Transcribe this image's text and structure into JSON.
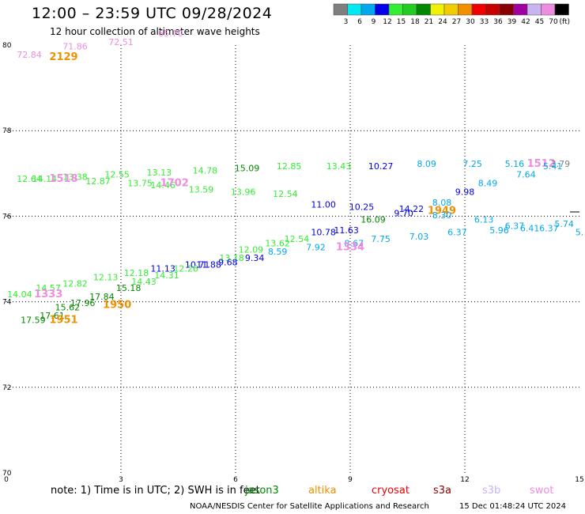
{
  "header": {
    "title": "12:00 – 23:59 UTC 09/28/2024",
    "subtitle": "12 hour collection of altimeter wave heights"
  },
  "colorbar": {
    "unit": "(ft)",
    "bins": [
      {
        "label": "3",
        "color": "#7f7f7f"
      },
      {
        "label": "6",
        "color": "#00e8f0"
      },
      {
        "label": "9",
        "color": "#00a8f0"
      },
      {
        "label": "12",
        "color": "#0000e8"
      },
      {
        "label": "15",
        "color": "#33ee33"
      },
      {
        "label": "18",
        "color": "#22cc22"
      },
      {
        "label": "21",
        "color": "#008800"
      },
      {
        "label": "24",
        "color": "#f0f000"
      },
      {
        "label": "27",
        "color": "#f0cc00"
      },
      {
        "label": "30",
        "color": "#f09000"
      },
      {
        "label": "33",
        "color": "#f00000"
      },
      {
        "label": "36",
        "color": "#c80000"
      },
      {
        "label": "39",
        "color": "#880000"
      },
      {
        "label": "42",
        "color": "#a000a0"
      },
      {
        "label": "45",
        "color": "#c8b4f0"
      },
      {
        "label": "70",
        "color": "#f08ce0"
      },
      {
        "label": "",
        "color": "#000000"
      }
    ]
  },
  "footer": {
    "note": "note:  1) Time is in UTC;  2) SWH is in feet",
    "credit": "NOAA/NESDIS Center for Satellite Applications and Research",
    "timestamp": "15 Dec 01:48:24 UTC 2024",
    "satellites": [
      {
        "name": "jason3",
        "color": "#008800"
      },
      {
        "name": "altika",
        "color": "#f09000"
      },
      {
        "name": "cryosat",
        "color": "#f00000"
      },
      {
        "name": "s3a",
        "color": "#880000"
      },
      {
        "name": "s3b",
        "color": "#c8b4f0"
      },
      {
        "name": "swot",
        "color": "#f08ce0"
      }
    ]
  },
  "chart_data": {
    "type": "scatter",
    "x_ticks": [
      "0",
      "3",
      "6",
      "9",
      "12",
      "15"
    ],
    "y_ticks": [
      "70",
      "72",
      "74",
      "76",
      "78",
      "80"
    ],
    "xlim": [
      0,
      15
    ],
    "ylim": [
      70,
      80
    ],
    "grid": true,
    "points": [
      {
        "x": 0.6,
        "y": 79.7,
        "label": "72.84",
        "color": "#f08ce0"
      },
      {
        "x": 1.8,
        "y": 79.9,
        "label": "71.86",
        "color": "#f08ce0"
      },
      {
        "x": 3.0,
        "y": 80.0,
        "label": "72.51",
        "color": "#f08ce0"
      },
      {
        "x": 4.3,
        "y": 80.2,
        "label": "65.70",
        "color": "#f08ce0"
      },
      {
        "x": 1.5,
        "y": 79.65,
        "label": "2129",
        "color": "#f09000"
      },
      {
        "x": 0.6,
        "y": 76.8,
        "label": "12.64",
        "color": "#33ee33"
      },
      {
        "x": 1.0,
        "y": 76.8,
        "label": "14.14",
        "color": "#33ee33"
      },
      {
        "x": 1.8,
        "y": 76.85,
        "label": "13.38",
        "color": "#33ee33"
      },
      {
        "x": 1.5,
        "y": 76.8,
        "label": "1518",
        "color": "#f08ce0"
      },
      {
        "x": 2.4,
        "y": 76.75,
        "label": "12.87",
        "color": "#33ee33"
      },
      {
        "x": 2.9,
        "y": 76.9,
        "label": "12.55",
        "color": "#33ee33"
      },
      {
        "x": 4.0,
        "y": 76.95,
        "label": "13.13",
        "color": "#33ee33"
      },
      {
        "x": 3.5,
        "y": 76.7,
        "label": "13.75",
        "color": "#33ee33"
      },
      {
        "x": 4.1,
        "y": 76.65,
        "label": "14.46",
        "color": "#33ee33"
      },
      {
        "x": 4.4,
        "y": 76.7,
        "label": "1702",
        "color": "#f08ce0"
      },
      {
        "x": 5.2,
        "y": 77.0,
        "label": "14.78",
        "color": "#33ee33"
      },
      {
        "x": 5.1,
        "y": 76.55,
        "label": "13.59",
        "color": "#33ee33"
      },
      {
        "x": 6.3,
        "y": 77.05,
        "label": "15.09",
        "color": "#008800"
      },
      {
        "x": 6.2,
        "y": 76.5,
        "label": "13.96",
        "color": "#33ee33"
      },
      {
        "x": 7.4,
        "y": 77.1,
        "label": "12.85",
        "color": "#33ee33"
      },
      {
        "x": 7.3,
        "y": 76.45,
        "label": "12.54",
        "color": "#33ee33"
      },
      {
        "x": 8.7,
        "y": 77.1,
        "label": "13.43",
        "color": "#33ee33"
      },
      {
        "x": 9.8,
        "y": 77.1,
        "label": "10.27",
        "color": "#0000e8"
      },
      {
        "x": 11.0,
        "y": 77.15,
        "label": "8.09",
        "color": "#00a8f0"
      },
      {
        "x": 12.2,
        "y": 77.15,
        "label": "7.25",
        "color": "#00a8f0"
      },
      {
        "x": 13.3,
        "y": 77.15,
        "label": "5.16",
        "color": "#00a8f0"
      },
      {
        "x": 14.0,
        "y": 77.15,
        "label": "1512",
        "color": "#f08ce0"
      },
      {
        "x": 14.5,
        "y": 77.15,
        "label": "3.79",
        "color": "#7f7f7f"
      },
      {
        "x": 14.3,
        "y": 77.1,
        "label": "5.41",
        "color": "#00a8f0"
      },
      {
        "x": 13.6,
        "y": 76.9,
        "label": "7.64",
        "color": "#00a8f0"
      },
      {
        "x": 12.6,
        "y": 76.7,
        "label": "8.49",
        "color": "#00a8f0"
      },
      {
        "x": 12.0,
        "y": 76.5,
        "label": "9.98",
        "color": "#0000e8"
      },
      {
        "x": 8.3,
        "y": 76.2,
        "label": "11.00",
        "color": "#0000e8"
      },
      {
        "x": 9.3,
        "y": 76.15,
        "label": "10.25",
        "color": "#0000e8"
      },
      {
        "x": 10.6,
        "y": 76.1,
        "label": "14.22",
        "color": "#0000e8"
      },
      {
        "x": 10.4,
        "y": 76.0,
        "label": "9.70",
        "color": "#0000e8"
      },
      {
        "x": 11.4,
        "y": 76.25,
        "label": "8.08",
        "color": "#00a8f0"
      },
      {
        "x": 11.4,
        "y": 76.05,
        "label": "1949",
        "color": "#f09000"
      },
      {
        "x": 11.4,
        "y": 75.95,
        "label": "8.30",
        "color": "#00a8f0"
      },
      {
        "x": 9.6,
        "y": 75.85,
        "label": "16.09",
        "color": "#008800"
      },
      {
        "x": 8.9,
        "y": 75.6,
        "label": "11.63",
        "color": "#0000e8"
      },
      {
        "x": 12.5,
        "y": 75.85,
        "label": "6.13",
        "color": "#00a8f0"
      },
      {
        "x": 12.9,
        "y": 75.6,
        "label": "5.96",
        "color": "#00a8f0"
      },
      {
        "x": 13.3,
        "y": 75.7,
        "label": "6.37",
        "color": "#00a8f0"
      },
      {
        "x": 13.7,
        "y": 75.65,
        "label": "6.41",
        "color": "#00a8f0"
      },
      {
        "x": 14.2,
        "y": 75.65,
        "label": "6.37",
        "color": "#00a8f0"
      },
      {
        "x": 14.6,
        "y": 75.75,
        "label": "5.74",
        "color": "#00a8f0"
      },
      {
        "x": 15.0,
        "y": 75.55,
        "label": "5.",
        "color": "#00a8f0"
      },
      {
        "x": 11.8,
        "y": 75.55,
        "label": "6.37",
        "color": "#00a8f0"
      },
      {
        "x": 10.8,
        "y": 75.45,
        "label": "7.03",
        "color": "#00a8f0"
      },
      {
        "x": 9.8,
        "y": 75.4,
        "label": "7.75",
        "color": "#00a8f0"
      },
      {
        "x": 8.3,
        "y": 75.55,
        "label": "10.78",
        "color": "#0000e8"
      },
      {
        "x": 7.6,
        "y": 75.4,
        "label": "12.54",
        "color": "#33ee33"
      },
      {
        "x": 9.1,
        "y": 75.3,
        "label": "8.67",
        "color": "#00a8f0"
      },
      {
        "x": 9.0,
        "y": 75.2,
        "label": "1334",
        "color": "#f08ce0"
      },
      {
        "x": 8.1,
        "y": 75.2,
        "label": "7.92",
        "color": "#00a8f0"
      },
      {
        "x": 7.1,
        "y": 75.3,
        "label": "13.62",
        "color": "#33ee33"
      },
      {
        "x": 7.1,
        "y": 75.1,
        "label": "8.59",
        "color": "#00a8f0"
      },
      {
        "x": 6.4,
        "y": 75.15,
        "label": "12.09",
        "color": "#33ee33"
      },
      {
        "x": 6.5,
        "y": 74.95,
        "label": "9.34",
        "color": "#0000e8"
      },
      {
        "x": 5.9,
        "y": 74.95,
        "label": "13.18",
        "color": "#33ee33"
      },
      {
        "x": 5.8,
        "y": 74.85,
        "label": "9.68",
        "color": "#0000e8"
      },
      {
        "x": 5.0,
        "y": 74.8,
        "label": "10.71",
        "color": "#0000e8"
      },
      {
        "x": 5.3,
        "y": 74.8,
        "label": "11.88",
        "color": "#0000e8"
      },
      {
        "x": 4.7,
        "y": 74.7,
        "label": "12.26",
        "color": "#33ee33"
      },
      {
        "x": 4.1,
        "y": 74.7,
        "label": "11.13",
        "color": "#0000e8"
      },
      {
        "x": 4.2,
        "y": 74.55,
        "label": "14.31",
        "color": "#33ee33"
      },
      {
        "x": 3.4,
        "y": 74.6,
        "label": "12.18",
        "color": "#33ee33"
      },
      {
        "x": 3.6,
        "y": 74.4,
        "label": "14.43",
        "color": "#33ee33"
      },
      {
        "x": 2.6,
        "y": 74.5,
        "label": "12.13",
        "color": "#33ee33"
      },
      {
        "x": 3.2,
        "y": 74.25,
        "label": "15.18",
        "color": "#008800"
      },
      {
        "x": 1.8,
        "y": 74.35,
        "label": "12.82",
        "color": "#33ee33"
      },
      {
        "x": 1.1,
        "y": 74.25,
        "label": "14.57",
        "color": "#33ee33"
      },
      {
        "x": 0.35,
        "y": 74.1,
        "label": "14.04",
        "color": "#33ee33"
      },
      {
        "x": 1.1,
        "y": 74.1,
        "label": "1333",
        "color": "#f08ce0"
      },
      {
        "x": 2.5,
        "y": 74.05,
        "label": "17.84",
        "color": "#008800"
      },
      {
        "x": 2.9,
        "y": 73.85,
        "label": "1950",
        "color": "#f09000"
      },
      {
        "x": 2.0,
        "y": 73.9,
        "label": "17.96",
        "color": "#008800"
      },
      {
        "x": 1.6,
        "y": 73.8,
        "label": "15.62",
        "color": "#008800"
      },
      {
        "x": 1.2,
        "y": 73.6,
        "label": "17.61",
        "color": "#008800"
      },
      {
        "x": 0.7,
        "y": 73.5,
        "label": "17.59",
        "color": "#008800"
      },
      {
        "x": 1.5,
        "y": 73.5,
        "label": "1951",
        "color": "#f09000"
      }
    ]
  }
}
